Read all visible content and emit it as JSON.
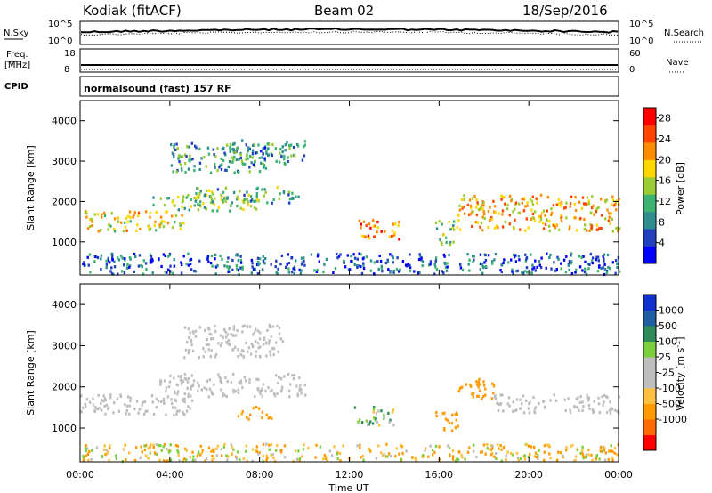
{
  "header": {
    "station": "Kodiak (fitACF)",
    "beam": "Beam 02",
    "date": "18/Sep/2016"
  },
  "strips": {
    "nsky_label": "N.Sky",
    "nsearch_label": "N.Search",
    "nsky_ticks": [
      "10^5",
      "10^0"
    ],
    "nsearch_ticks": [
      "10^5",
      "10^0"
    ],
    "freq_label": "Freq.",
    "freq_unit": "[MHz]",
    "freq_ticks": [
      "18",
      "8"
    ],
    "nave_label": "Nave",
    "nave_ticks": [
      "60",
      "0"
    ],
    "cpid_label": "CPID",
    "cpid_value": "normalsound (fast) 157 RF"
  },
  "colors": {
    "power": [
      "#0000ff",
      "#2040c0",
      "#2f8f8f",
      "#3cb371",
      "#9acd32",
      "#ffd700",
      "#ff8c00",
      "#ff4500",
      "#ff0000"
    ],
    "velocity": [
      "#ff0000",
      "#ff6a00",
      "#ff9a00",
      "#ffc040",
      "#bebebe",
      "#bebebe",
      "#7cd03c",
      "#2e8b57",
      "#1f5fa0",
      "#1030d0"
    ]
  },
  "chart_data": [
    {
      "type": "heatmap",
      "panel": "power",
      "ylabel": "Slant Range [km]",
      "yticks": [
        "4000",
        "3000",
        "2000",
        "1000"
      ],
      "ylim": [
        180,
        4500
      ],
      "colorbar_label": "Power [dB]",
      "colorbar_ticks": [
        "28",
        "24",
        "20",
        "16",
        "12",
        "8",
        "4"
      ],
      "range": [
        0,
        30
      ],
      "regions": [
        {
          "t0": 0.0,
          "t1": 4.6,
          "r0": 1250,
          "r1": 1750,
          "val": 18
        },
        {
          "t0": 3.2,
          "t1": 8.0,
          "r0": 1750,
          "r1": 2150,
          "val": 14
        },
        {
          "t0": 5.0,
          "t1": 9.8,
          "r0": 1950,
          "r1": 2350,
          "val": 12
        },
        {
          "t0": 4.0,
          "t1": 8.5,
          "r0": 2700,
          "r1": 3450,
          "val": 10
        },
        {
          "t0": 6.5,
          "t1": 10.0,
          "r0": 2900,
          "r1": 3500,
          "val": 9
        },
        {
          "t0": 12.4,
          "t1": 14.2,
          "r0": 1050,
          "r1": 1550,
          "val": 24
        },
        {
          "t0": 15.8,
          "t1": 16.8,
          "r0": 900,
          "r1": 1500,
          "val": 12
        },
        {
          "t0": 16.8,
          "t1": 24.0,
          "r0": 1250,
          "r1": 2150,
          "val": 20
        },
        {
          "t0": 0.0,
          "t1": 24.0,
          "r0": 180,
          "r1": 700,
          "val": 6
        }
      ]
    },
    {
      "type": "heatmap",
      "panel": "velocity",
      "ylabel": "Slant Range [km]",
      "yticks": [
        "4000",
        "3000",
        "2000",
        "1000"
      ],
      "ylim": [
        180,
        4500
      ],
      "xlabel": "Time UT",
      "xticks": [
        "00:00",
        "04:00",
        "08:00",
        "12:00",
        "16:00",
        "20:00",
        "00:00"
      ],
      "xlim": [
        0,
        24
      ],
      "colorbar_label": "Velocity [m s",
      "colorbar_label_sup": "-1",
      "colorbar_label_end": "]",
      "colorbar_ticks": [
        "1000",
        "500",
        "100",
        "25",
        "-25",
        "-100",
        "-500",
        "-1000"
      ],
      "regions": [
        {
          "t0": 0.0,
          "t1": 5.0,
          "r0": 1300,
          "r1": 1800,
          "val": 0
        },
        {
          "t0": 3.5,
          "t1": 10.0,
          "r0": 1750,
          "r1": 2300,
          "val": 0
        },
        {
          "t0": 4.5,
          "t1": 9.0,
          "r0": 2700,
          "r1": 3500,
          "val": 0
        },
        {
          "t0": 7.0,
          "t1": 8.5,
          "r0": 1200,
          "r1": 1500,
          "val": -200
        },
        {
          "t0": 12.2,
          "t1": 14.0,
          "r0": 1050,
          "r1": 1500,
          "val": 80
        },
        {
          "t0": 15.8,
          "t1": 16.8,
          "r0": 900,
          "r1": 1400,
          "val": -300
        },
        {
          "t0": 16.8,
          "t1": 18.4,
          "r0": 1700,
          "r1": 2200,
          "val": -300
        },
        {
          "t0": 18.4,
          "t1": 24.0,
          "r0": 1350,
          "r1": 1800,
          "val": 0
        },
        {
          "t0": 0.0,
          "t1": 24.0,
          "r0": 180,
          "r1": 600,
          "val": -60
        }
      ]
    }
  ]
}
